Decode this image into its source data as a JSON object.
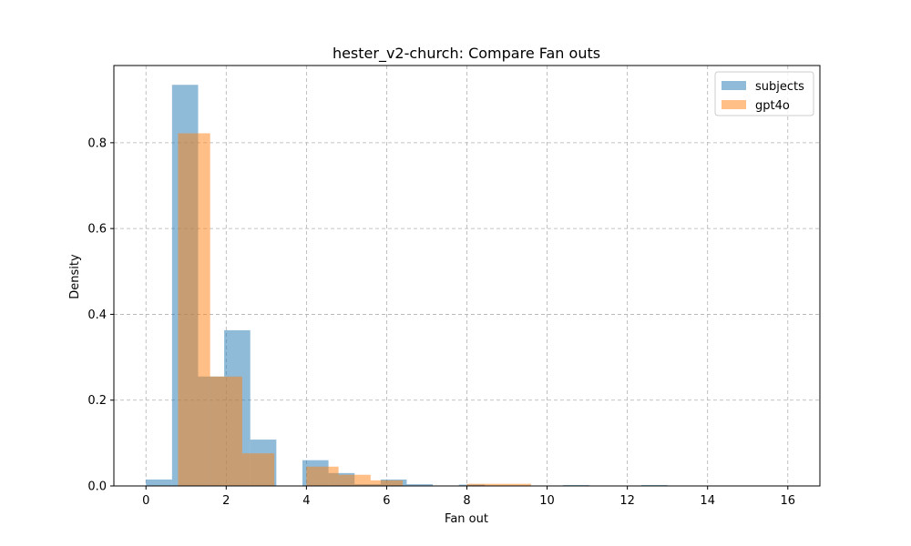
{
  "chart_data": {
    "type": "bar",
    "title": "hester_v2-church: Compare Fan outs",
    "xlabel": "Fan out",
    "ylabel": "Density",
    "xlim": [
      -0.8,
      16.8
    ],
    "ylim": [
      0,
      0.98
    ],
    "xticks": [
      0,
      2,
      4,
      6,
      8,
      10,
      12,
      14,
      16
    ],
    "yticks": [
      0.0,
      0.2,
      0.4,
      0.6,
      0.8
    ],
    "grid": true,
    "legend_position": "top-right",
    "series": [
      {
        "name": "subjects",
        "color": "#1f77b4",
        "opacity": 0.5,
        "bins": [
          {
            "x0": 0.0,
            "x1": 0.65,
            "value": 0.015
          },
          {
            "x0": 0.65,
            "x1": 1.3,
            "value": 0.935
          },
          {
            "x0": 1.3,
            "x1": 1.95,
            "value": 0.255
          },
          {
            "x0": 1.95,
            "x1": 2.6,
            "value": 0.363
          },
          {
            "x0": 2.6,
            "x1": 3.25,
            "value": 0.108
          },
          {
            "x0": 3.25,
            "x1": 3.9,
            "value": 0.0
          },
          {
            "x0": 3.9,
            "x1": 4.55,
            "value": 0.06
          },
          {
            "x0": 4.55,
            "x1": 5.2,
            "value": 0.03
          },
          {
            "x0": 5.2,
            "x1": 5.85,
            "value": 0.004
          },
          {
            "x0": 5.85,
            "x1": 6.5,
            "value": 0.015
          },
          {
            "x0": 6.5,
            "x1": 7.15,
            "value": 0.004
          },
          {
            "x0": 7.15,
            "x1": 7.8,
            "value": 0.0
          },
          {
            "x0": 7.8,
            "x1": 8.45,
            "value": 0.003
          },
          {
            "x0": 8.45,
            "x1": 9.1,
            "value": 0.0
          },
          {
            "x0": 9.1,
            "x1": 9.75,
            "value": 0.0
          },
          {
            "x0": 9.75,
            "x1": 10.4,
            "value": 0.0
          },
          {
            "x0": 10.4,
            "x1": 11.05,
            "value": 0.002
          },
          {
            "x0": 11.05,
            "x1": 11.7,
            "value": 0.0
          },
          {
            "x0": 11.7,
            "x1": 12.35,
            "value": 0.0
          },
          {
            "x0": 12.35,
            "x1": 13.0,
            "value": 0.002
          },
          {
            "x0": 13.0,
            "x1": 13.65,
            "value": 0.0
          },
          {
            "x0": 13.65,
            "x1": 14.3,
            "value": 0.0
          },
          {
            "x0": 14.3,
            "x1": 14.95,
            "value": 0.0
          },
          {
            "x0": 14.95,
            "x1": 15.6,
            "value": 0.0
          },
          {
            "x0": 15.6,
            "x1": 16.0,
            "value": 0.0
          }
        ]
      },
      {
        "name": "gpt4o",
        "color": "#ff7f0e",
        "opacity": 0.5,
        "bins": [
          {
            "x0": 0.8,
            "x1": 1.6,
            "value": 0.822
          },
          {
            "x0": 1.6,
            "x1": 2.4,
            "value": 0.255
          },
          {
            "x0": 2.4,
            "x1": 3.2,
            "value": 0.076
          },
          {
            "x0": 3.2,
            "x1": 4.0,
            "value": 0.0
          },
          {
            "x0": 4.0,
            "x1": 4.8,
            "value": 0.045
          },
          {
            "x0": 4.8,
            "x1": 5.6,
            "value": 0.026
          },
          {
            "x0": 5.6,
            "x1": 6.4,
            "value": 0.013
          },
          {
            "x0": 6.4,
            "x1": 7.2,
            "value": 0.0
          },
          {
            "x0": 7.2,
            "x1": 8.0,
            "value": 0.0
          },
          {
            "x0": 8.0,
            "x1": 8.8,
            "value": 0.005
          },
          {
            "x0": 8.8,
            "x1": 9.6,
            "value": 0.005
          }
        ]
      }
    ]
  }
}
